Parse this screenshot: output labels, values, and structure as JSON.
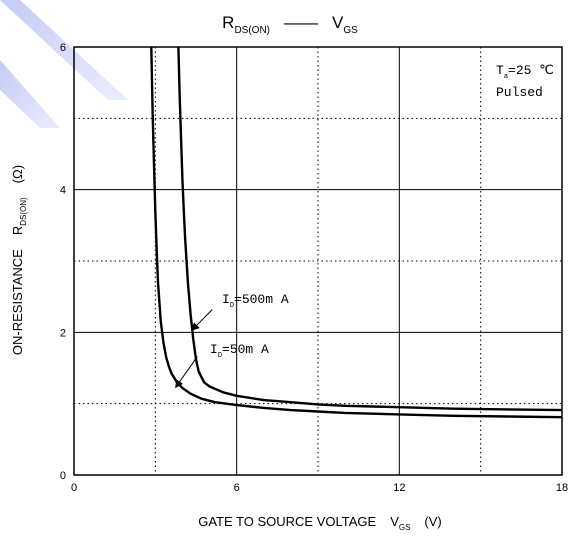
{
  "chart_data": {
    "type": "line",
    "title": {
      "left_main": "R",
      "left_sub": "DS(ON)",
      "dash": "——",
      "right_main": "V",
      "right_sub": "GS"
    },
    "xlabel": {
      "main": "GATE TO SOURCE VOLTAGE",
      "v": "V",
      "sub": "GS",
      "unit": "(V)"
    },
    "ylabel": {
      "main": "ON-RESISTANCE",
      "r": "R",
      "sub": "DS(ON)",
      "unit": "(Ω)"
    },
    "xlim": [
      0,
      18
    ],
    "ylim": [
      0,
      6
    ],
    "x_ticks": [
      {
        "value": 0,
        "label": "0"
      },
      {
        "value": 6,
        "label": "6"
      },
      {
        "value": 12,
        "label": "12"
      },
      {
        "value": 18,
        "label": "18"
      }
    ],
    "y_ticks": [
      {
        "value": 0,
        "label": "0"
      },
      {
        "value": 2,
        "label": "2"
      },
      {
        "value": 4,
        "label": "4"
      },
      {
        "value": 6,
        "label": "6"
      }
    ],
    "grid_solid_x": [
      6,
      12
    ],
    "grid_dotted_x": [
      3,
      9,
      15
    ],
    "grid_solid_y": [
      2,
      4
    ],
    "grid_dotted_y": [
      1,
      3,
      5
    ],
    "conditions": {
      "line1_main": "T",
      "line1_sub": "a",
      "line1_rest": "=25 ℃",
      "line2": "Pulsed"
    },
    "series": [
      {
        "name": "I_D=50mA",
        "label_main": "I",
        "label_sub": "D",
        "label_rest": "=50m A",
        "x": [
          2.85,
          2.9,
          2.95,
          3.0,
          3.05,
          3.1,
          3.2,
          3.3,
          3.4,
          3.5,
          3.6,
          3.8,
          4.0,
          4.3,
          4.7,
          5.2,
          6.0,
          7.0,
          8.0,
          9.0,
          10.0,
          12.0,
          14.0,
          16.0,
          18.0
        ],
        "y": [
          6.0,
          5.1,
          4.35,
          3.7,
          3.15,
          2.7,
          2.15,
          1.85,
          1.65,
          1.52,
          1.42,
          1.3,
          1.22,
          1.14,
          1.07,
          1.02,
          0.98,
          0.94,
          0.91,
          0.89,
          0.87,
          0.85,
          0.83,
          0.82,
          0.81
        ]
      },
      {
        "name": "I_D=500mA",
        "label_main": "I",
        "label_sub": "D",
        "label_rest": "=500m A",
        "x": [
          3.85,
          3.9,
          3.95,
          4.0,
          4.05,
          4.1,
          4.2,
          4.3,
          4.4,
          4.5,
          4.6,
          4.8,
          5.0,
          5.5,
          6.0,
          7.0,
          8.0,
          9.0,
          10.0,
          12.0,
          14.0,
          16.0,
          18.0
        ],
        "y": [
          6.0,
          5.3,
          4.7,
          4.15,
          3.7,
          3.3,
          2.7,
          2.25,
          1.9,
          1.62,
          1.45,
          1.3,
          1.24,
          1.16,
          1.11,
          1.05,
          1.02,
          0.99,
          0.97,
          0.95,
          0.93,
          0.92,
          0.91
        ]
      }
    ],
    "annotations": [
      {
        "series": 0,
        "from_x": 4.55,
        "from_y": 1.66,
        "to_x": 3.75,
        "to_y": 1.23
      },
      {
        "series": 1,
        "from_x": 5.1,
        "from_y": 2.32,
        "to_x": 4.35,
        "to_y": 2.03
      }
    ]
  }
}
